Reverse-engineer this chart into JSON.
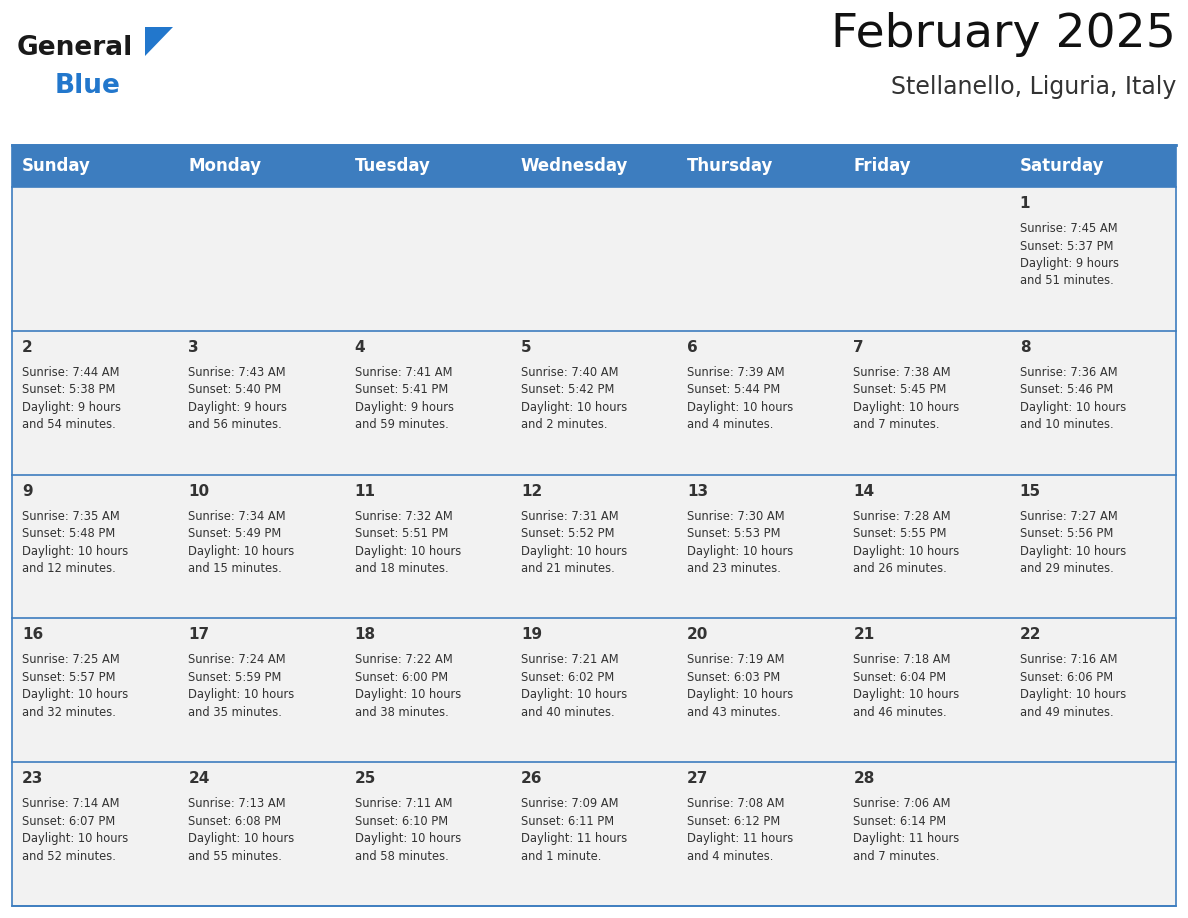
{
  "title": "February 2025",
  "subtitle": "Stellanello, Liguria, Italy",
  "header_bg": "#3D7DBF",
  "header_text_color": "#FFFFFF",
  "cell_bg": "#F2F2F2",
  "day_num_color": "#333333",
  "info_text_color": "#333333",
  "separator_color": "#3D7DBF",
  "days_of_week": [
    "Sunday",
    "Monday",
    "Tuesday",
    "Wednesday",
    "Thursday",
    "Friday",
    "Saturday"
  ],
  "weeks": [
    [
      {
        "day": null,
        "info": null
      },
      {
        "day": null,
        "info": null
      },
      {
        "day": null,
        "info": null
      },
      {
        "day": null,
        "info": null
      },
      {
        "day": null,
        "info": null
      },
      {
        "day": null,
        "info": null
      },
      {
        "day": 1,
        "info": "Sunrise: 7:45 AM\nSunset: 5:37 PM\nDaylight: 9 hours\nand 51 minutes."
      }
    ],
    [
      {
        "day": 2,
        "info": "Sunrise: 7:44 AM\nSunset: 5:38 PM\nDaylight: 9 hours\nand 54 minutes."
      },
      {
        "day": 3,
        "info": "Sunrise: 7:43 AM\nSunset: 5:40 PM\nDaylight: 9 hours\nand 56 minutes."
      },
      {
        "day": 4,
        "info": "Sunrise: 7:41 AM\nSunset: 5:41 PM\nDaylight: 9 hours\nand 59 minutes."
      },
      {
        "day": 5,
        "info": "Sunrise: 7:40 AM\nSunset: 5:42 PM\nDaylight: 10 hours\nand 2 minutes."
      },
      {
        "day": 6,
        "info": "Sunrise: 7:39 AM\nSunset: 5:44 PM\nDaylight: 10 hours\nand 4 minutes."
      },
      {
        "day": 7,
        "info": "Sunrise: 7:38 AM\nSunset: 5:45 PM\nDaylight: 10 hours\nand 7 minutes."
      },
      {
        "day": 8,
        "info": "Sunrise: 7:36 AM\nSunset: 5:46 PM\nDaylight: 10 hours\nand 10 minutes."
      }
    ],
    [
      {
        "day": 9,
        "info": "Sunrise: 7:35 AM\nSunset: 5:48 PM\nDaylight: 10 hours\nand 12 minutes."
      },
      {
        "day": 10,
        "info": "Sunrise: 7:34 AM\nSunset: 5:49 PM\nDaylight: 10 hours\nand 15 minutes."
      },
      {
        "day": 11,
        "info": "Sunrise: 7:32 AM\nSunset: 5:51 PM\nDaylight: 10 hours\nand 18 minutes."
      },
      {
        "day": 12,
        "info": "Sunrise: 7:31 AM\nSunset: 5:52 PM\nDaylight: 10 hours\nand 21 minutes."
      },
      {
        "day": 13,
        "info": "Sunrise: 7:30 AM\nSunset: 5:53 PM\nDaylight: 10 hours\nand 23 minutes."
      },
      {
        "day": 14,
        "info": "Sunrise: 7:28 AM\nSunset: 5:55 PM\nDaylight: 10 hours\nand 26 minutes."
      },
      {
        "day": 15,
        "info": "Sunrise: 7:27 AM\nSunset: 5:56 PM\nDaylight: 10 hours\nand 29 minutes."
      }
    ],
    [
      {
        "day": 16,
        "info": "Sunrise: 7:25 AM\nSunset: 5:57 PM\nDaylight: 10 hours\nand 32 minutes."
      },
      {
        "day": 17,
        "info": "Sunrise: 7:24 AM\nSunset: 5:59 PM\nDaylight: 10 hours\nand 35 minutes."
      },
      {
        "day": 18,
        "info": "Sunrise: 7:22 AM\nSunset: 6:00 PM\nDaylight: 10 hours\nand 38 minutes."
      },
      {
        "day": 19,
        "info": "Sunrise: 7:21 AM\nSunset: 6:02 PM\nDaylight: 10 hours\nand 40 minutes."
      },
      {
        "day": 20,
        "info": "Sunrise: 7:19 AM\nSunset: 6:03 PM\nDaylight: 10 hours\nand 43 minutes."
      },
      {
        "day": 21,
        "info": "Sunrise: 7:18 AM\nSunset: 6:04 PM\nDaylight: 10 hours\nand 46 minutes."
      },
      {
        "day": 22,
        "info": "Sunrise: 7:16 AM\nSunset: 6:06 PM\nDaylight: 10 hours\nand 49 minutes."
      }
    ],
    [
      {
        "day": 23,
        "info": "Sunrise: 7:14 AM\nSunset: 6:07 PM\nDaylight: 10 hours\nand 52 minutes."
      },
      {
        "day": 24,
        "info": "Sunrise: 7:13 AM\nSunset: 6:08 PM\nDaylight: 10 hours\nand 55 minutes."
      },
      {
        "day": 25,
        "info": "Sunrise: 7:11 AM\nSunset: 6:10 PM\nDaylight: 10 hours\nand 58 minutes."
      },
      {
        "day": 26,
        "info": "Sunrise: 7:09 AM\nSunset: 6:11 PM\nDaylight: 11 hours\nand 1 minute."
      },
      {
        "day": 27,
        "info": "Sunrise: 7:08 AM\nSunset: 6:12 PM\nDaylight: 11 hours\nand 4 minutes."
      },
      {
        "day": 28,
        "info": "Sunrise: 7:06 AM\nSunset: 6:14 PM\nDaylight: 11 hours\nand 7 minutes."
      },
      {
        "day": null,
        "info": null
      }
    ]
  ],
  "logo_color_general": "#1A1A1A",
  "logo_color_blue": "#2277CC",
  "logo_triangle_color": "#2277CC",
  "fig_width": 11.88,
  "fig_height": 9.18,
  "dpi": 100
}
